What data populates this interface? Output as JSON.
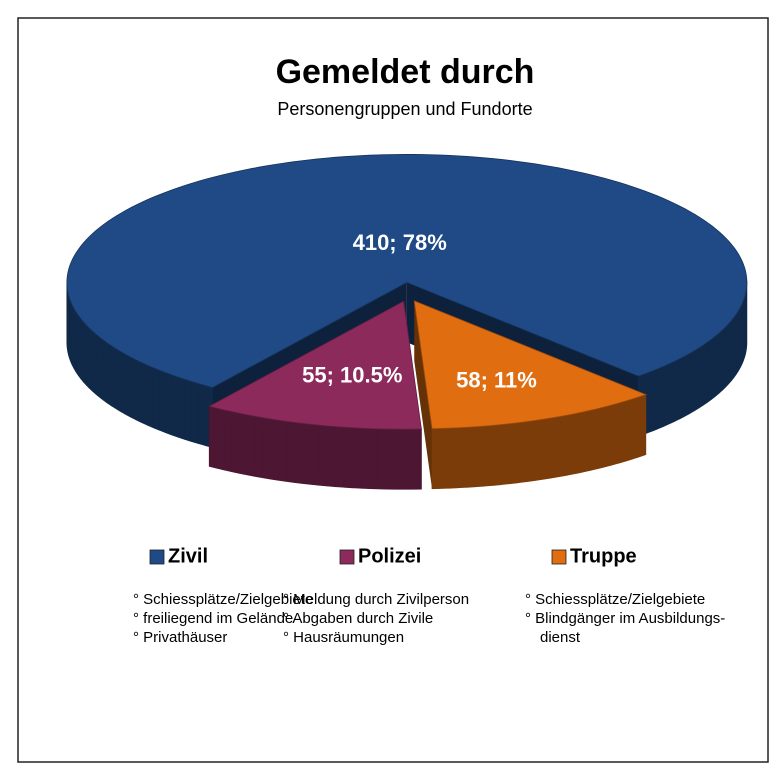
{
  "chart_data": {
    "type": "pie3d",
    "title": "Gemeldet durch",
    "subtitle": "Personengruppen und Fundorte",
    "categories": [
      "Zivil",
      "Polizei",
      "Truppe"
    ],
    "values": [
      410,
      55,
      58
    ],
    "value_labels": [
      "410; 78%",
      "55; 10.5%",
      "58; 11%"
    ],
    "colors": [
      "#1f4a85",
      "#8c2a5c",
      "#e06d10"
    ],
    "legend": "bottom",
    "notes": [
      [
        "° Schiessplätze/Zielgebiete",
        "° freiliegend im Gelände",
        "° Privathäuser"
      ],
      [
        "° Meldung durch Zivilperson",
        "° Abgaben durch Zivile",
        "° Hausräumungen"
      ],
      [
        "° Schiessplätze/Zielgebiete",
        "° Blindgänger im Ausbildungs-",
        "dienst"
      ]
    ]
  }
}
